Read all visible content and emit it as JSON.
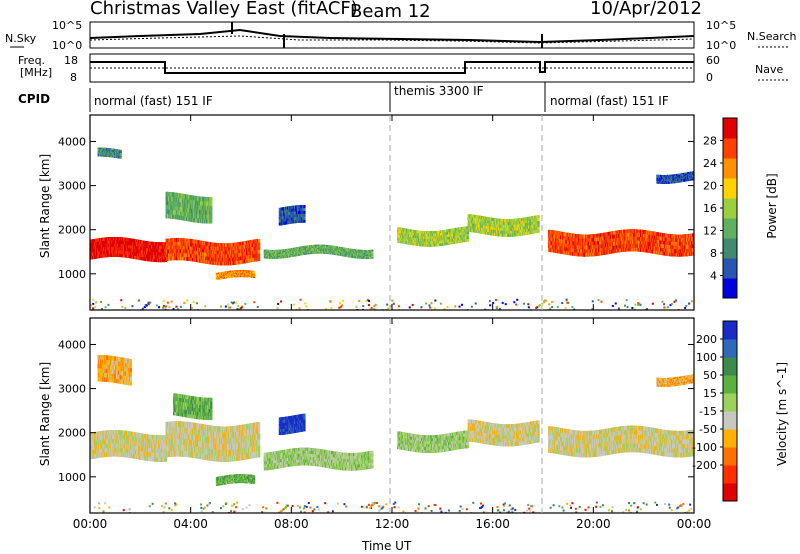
{
  "header": {
    "station": "Christmas Valley East (fitACF)",
    "beam": "Beam 12",
    "date": "10/Apr/2012"
  },
  "top_panel": {
    "left_label": "N.Sky",
    "right_label": "N.Search",
    "left_ticks": [
      "10^5",
      "10^0"
    ],
    "right_ticks": [
      "10^5",
      "10^0"
    ]
  },
  "freq_panel": {
    "left_label_1": "Freq.",
    "left_label_2": "[MHz]",
    "right_label": "Nave",
    "left_ticks": [
      "18",
      "8"
    ],
    "right_ticks": [
      "60",
      "0"
    ]
  },
  "cpid": {
    "label": "CPID",
    "segments": [
      {
        "name": "normal (fast) 151 IF",
        "start_h": 0,
        "end_h": 12
      },
      {
        "name": "themis 3300 IF",
        "start_h": 12,
        "end_h": 18
      },
      {
        "name": "normal (fast) 151 IF",
        "start_h": 18,
        "end_h": 24
      }
    ]
  },
  "chart_data": [
    {
      "type": "heatmap",
      "title": "",
      "xlabel": "Time UT",
      "ylabel": "Slant Range [km]",
      "x_ticks": [
        "00:00",
        "04:00",
        "08:00",
        "12:00",
        "16:00",
        "20:00",
        "00:00"
      ],
      "xlim": [
        0,
        24
      ],
      "y_ticks": [
        "1000",
        "2000",
        "3000",
        "4000"
      ],
      "ylim": [
        180,
        4600
      ],
      "colorbar": {
        "label": "Power [dB]",
        "ticks": [
          "4",
          "8",
          "12",
          "16",
          "20",
          "24",
          "28"
        ],
        "colors": [
          "#0000e0",
          "#2a55b0",
          "#3f8a70",
          "#5fb060",
          "#9ad040",
          "#ffd200",
          "#ff9000",
          "#ff4000",
          "#e00000"
        ]
      },
      "bands": [
        {
          "x_start": 0.0,
          "x_end": 3.0,
          "range_center": 1550,
          "range_width": 450,
          "level": 8
        },
        {
          "x_start": 0.3,
          "x_end": 1.2,
          "range_center": 3700,
          "range_width": 200,
          "level": 2
        },
        {
          "x_start": 3.0,
          "x_end": 6.7,
          "range_center": 1500,
          "range_width": 500,
          "level": 7
        },
        {
          "x_start": 3.0,
          "x_end": 4.8,
          "range_center": 2500,
          "range_width": 600,
          "level": 3
        },
        {
          "x_start": 5.0,
          "x_end": 6.5,
          "range_center": 950,
          "range_width": 150,
          "level": 6
        },
        {
          "x_start": 6.9,
          "x_end": 11.2,
          "range_center": 1500,
          "range_width": 200,
          "level": 3
        },
        {
          "x_start": 7.5,
          "x_end": 8.5,
          "range_center": 2300,
          "range_width": 400,
          "level": 1
        },
        {
          "x_start": 12.2,
          "x_end": 15.0,
          "range_center": 1850,
          "range_width": 350,
          "level": 4
        },
        {
          "x_start": 15.0,
          "x_end": 17.8,
          "range_center": 2100,
          "range_width": 400,
          "level": 4
        },
        {
          "x_start": 18.2,
          "x_end": 24.0,
          "range_center": 1700,
          "range_width": 500,
          "level": 7
        },
        {
          "x_start": 22.5,
          "x_end": 24.0,
          "range_center": 3200,
          "range_width": 200,
          "level": 1
        }
      ]
    },
    {
      "type": "heatmap",
      "title": "",
      "xlabel": "Time UT",
      "ylabel": "Slant Range [km]",
      "x_ticks": [
        "00:00",
        "04:00",
        "08:00",
        "12:00",
        "16:00",
        "20:00",
        "00:00"
      ],
      "xlim": [
        0,
        24
      ],
      "y_ticks": [
        "1000",
        "2000",
        "3000",
        "4000"
      ],
      "ylim": [
        180,
        4600
      ],
      "colorbar": {
        "label": "Velocity [m s^-1]",
        "ticks": [
          "200",
          "100",
          "50",
          "15",
          "-15",
          "-50",
          "-100",
          "-200"
        ],
        "colors": [
          "#1a2cc8",
          "#2e6ab8",
          "#3c8a4c",
          "#5cb040",
          "#9ed060",
          "#c8c8c0",
          "#ffb000",
          "#ff7000",
          "#ff3000",
          "#e00000"
        ]
      },
      "bands": [
        {
          "x_start": 0.0,
          "x_end": 3.0,
          "range_center": 1700,
          "range_width": 600,
          "level": 5
        },
        {
          "x_start": 0.3,
          "x_end": 1.6,
          "range_center": 3400,
          "range_width": 600,
          "level": 6
        },
        {
          "x_start": 3.0,
          "x_end": 6.7,
          "range_center": 1800,
          "range_width": 800,
          "level": 5
        },
        {
          "x_start": 3.3,
          "x_end": 4.8,
          "range_center": 2600,
          "range_width": 500,
          "level": 3
        },
        {
          "x_start": 5.0,
          "x_end": 6.5,
          "range_center": 900,
          "range_width": 200,
          "level": 3
        },
        {
          "x_start": 7.5,
          "x_end": 8.5,
          "range_center": 2200,
          "range_width": 400,
          "level": 0
        },
        {
          "x_start": 6.9,
          "x_end": 11.2,
          "range_center": 1400,
          "range_width": 400,
          "level": 4
        },
        {
          "x_start": 12.2,
          "x_end": 15.0,
          "range_center": 1800,
          "range_width": 400,
          "level": 4
        },
        {
          "x_start": 15.0,
          "x_end": 17.8,
          "range_center": 2000,
          "range_width": 500,
          "level": 5
        },
        {
          "x_start": 18.2,
          "x_end": 24.0,
          "range_center": 1800,
          "range_width": 600,
          "level": 5
        },
        {
          "x_start": 22.5,
          "x_end": 24.0,
          "range_center": 3200,
          "range_width": 200,
          "level": 6
        }
      ]
    }
  ]
}
